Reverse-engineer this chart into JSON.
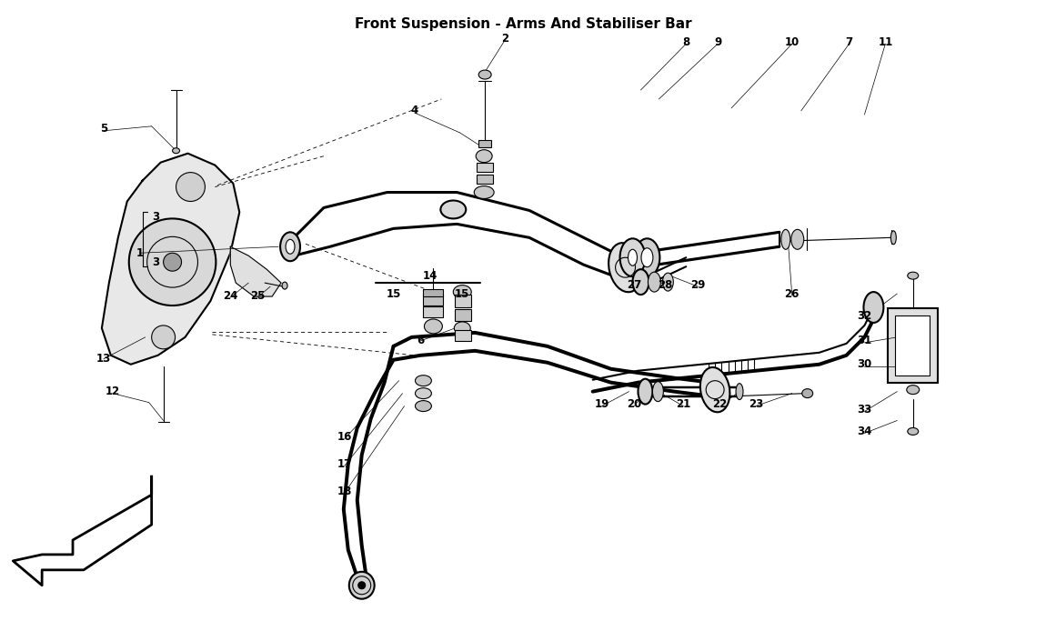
{
  "title": "Front Suspension - Arms And Stabiliser Bar",
  "bg_color": "#ffffff",
  "line_color": "#000000",
  "fig_width": 11.5,
  "fig_height": 6.83,
  "dpi": 100
}
